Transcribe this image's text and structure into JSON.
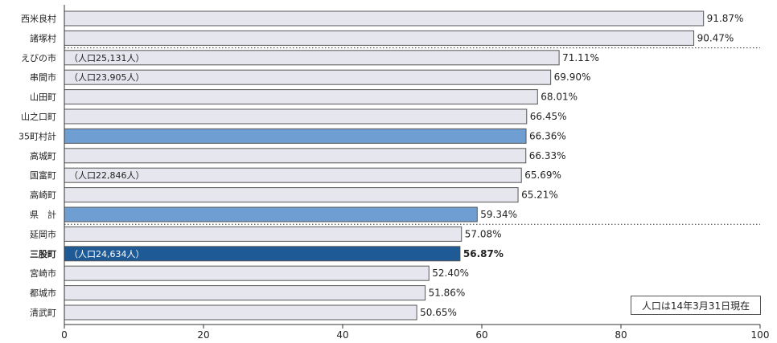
{
  "chart_data": {
    "type": "bar",
    "orientation": "horizontal",
    "categories": [
      "西米良村",
      "諸塚村",
      "えびの市",
      "串間市",
      "山田町",
      "山之口町",
      "35町村計",
      "高城町",
      "国富町",
      "高崎町",
      "県　計",
      "延岡市",
      "三股町",
      "宮崎市",
      "都城市",
      "清武町"
    ],
    "values": [
      91.87,
      90.47,
      71.11,
      69.9,
      68.01,
      66.45,
      66.36,
      66.33,
      65.69,
      65.21,
      59.34,
      57.08,
      56.87,
      52.4,
      51.86,
      50.65
    ],
    "value_labels": [
      "91.87%",
      "90.47%",
      "71.11%",
      "69.90%",
      "68.01%",
      "66.45%",
      "66.36%",
      "66.33%",
      "65.69%",
      "65.21%",
      "59.34%",
      "57.08%",
      "56.87%",
      "52.40%",
      "51.86%",
      "50.65%"
    ],
    "population_labels": [
      "",
      "",
      "（人口25,131人）",
      "（人口23,905人）",
      "",
      "",
      "",
      "",
      "（人口22,846人）",
      "",
      "",
      "",
      "（人口24,634人）",
      "",
      "",
      ""
    ],
    "bar_styles": [
      "normal",
      "normal",
      "normal",
      "normal",
      "normal",
      "normal",
      "aggregate",
      "normal",
      "normal",
      "normal",
      "aggregate",
      "normal",
      "highlight",
      "normal",
      "normal",
      "normal"
    ],
    "separators_after": [
      1,
      10
    ],
    "xlim": [
      0,
      100
    ],
    "xticks": [
      0,
      20,
      40,
      60,
      80,
      100
    ],
    "title": "",
    "xlabel": "",
    "ylabel": "",
    "grid": false,
    "note": "人口は14年3月31日現在",
    "colors": {
      "bar_normal": "#e6e6ee",
      "bar_aggregate": "#6f9fd2",
      "bar_highlight": "#1e5a96",
      "bar_border": "#555555",
      "separator": "#333333",
      "axis": "#333333",
      "text": "#222222",
      "highlight_label_text": "#ffffff"
    }
  }
}
